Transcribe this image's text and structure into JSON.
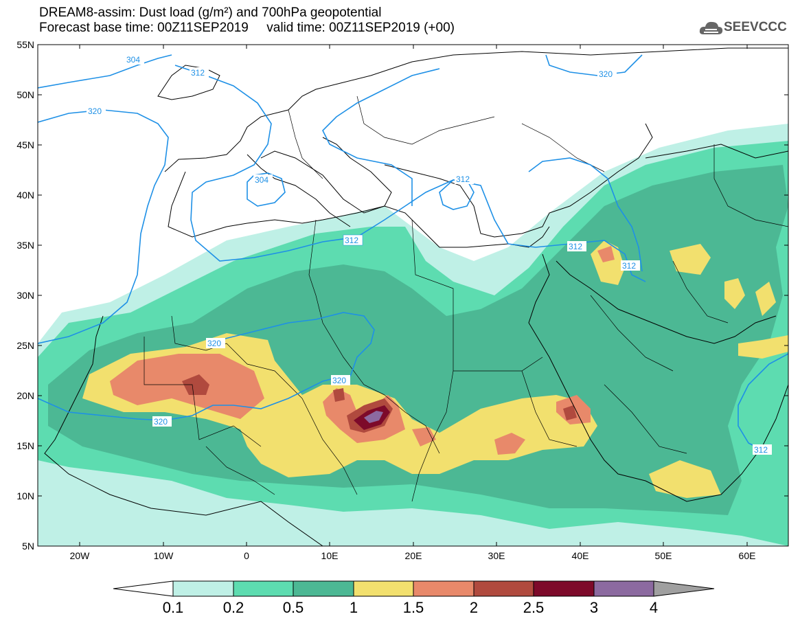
{
  "title": {
    "line1": "DREAM8-assim: Dust load (g/m²) and 700hPa geopotential",
    "line2": "Forecast base time: 00Z11SEP2019     valid time: 00Z11SEP2019 (+00)"
  },
  "logo": {
    "text": "SEEVCCC",
    "icon": "cloud-icon"
  },
  "axes": {
    "lat_labels": [
      "55N",
      "50N",
      "45N",
      "40N",
      "35N",
      "30N",
      "25N",
      "20N",
      "15N",
      "10N",
      "5N"
    ],
    "lon_labels": [
      "20W",
      "10W",
      "0",
      "10E",
      "20E",
      "30E",
      "40E",
      "50E",
      "60E"
    ]
  },
  "contour_labels": [
    {
      "text": "304",
      "id": "c304a"
    },
    {
      "text": "312",
      "id": "c312a"
    },
    {
      "text": "320",
      "id": "c320a"
    },
    {
      "text": "320",
      "id": "c320b"
    },
    {
      "text": "304",
      "id": "c304b"
    },
    {
      "text": "312",
      "id": "c312b"
    },
    {
      "text": "312",
      "id": "c312c"
    },
    {
      "text": "312",
      "id": "c312d"
    },
    {
      "text": "312",
      "id": "c312e"
    },
    {
      "text": "320",
      "id": "c320c"
    },
    {
      "text": "320",
      "id": "c320d"
    },
    {
      "text": "320",
      "id": "c320e"
    },
    {
      "text": "312",
      "id": "c312f"
    }
  ],
  "colorbar": {
    "ticks": [
      "0.1",
      "0.2",
      "0.5",
      "1",
      "1.5",
      "2",
      "2.5",
      "3",
      "4"
    ],
    "colors": [
      "#bff0e6",
      "#5ddcb0",
      "#4cb894",
      "#f2e06e",
      "#e8896a",
      "#b04a3e",
      "#7d0a2a",
      "#8c6aa0"
    ],
    "under_color": "#ffffff",
    "over_color": "#a0a0a0"
  },
  "colors": {
    "geopotential": "#1e90e6",
    "coast": "#000000"
  }
}
